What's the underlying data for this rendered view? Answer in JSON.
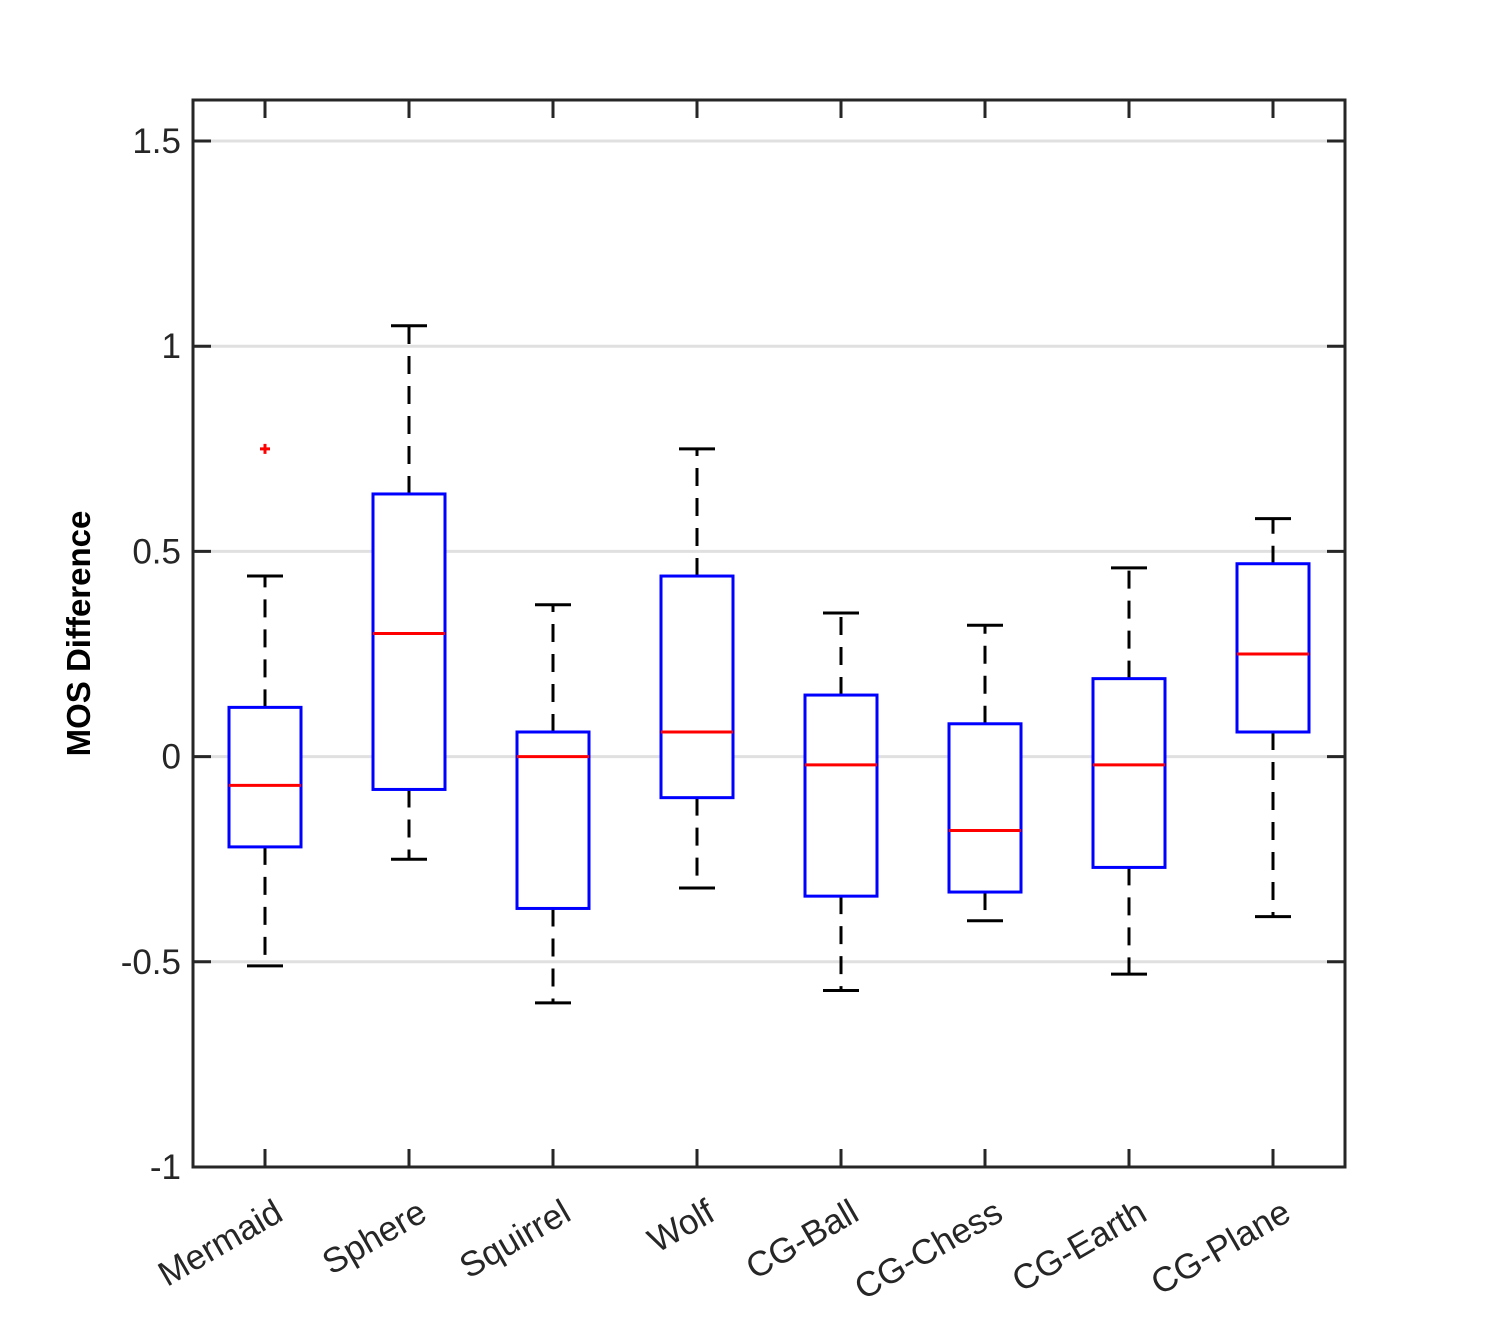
{
  "chart_data": {
    "type": "boxplot",
    "title": "",
    "xlabel": "",
    "ylabel": "MOS Difference",
    "ylim": [
      -1,
      1.6
    ],
    "yticks": [
      -1,
      -0.5,
      0,
      0.5,
      1,
      1.5
    ],
    "ytick_labels": [
      "-1",
      "-0.5",
      "0",
      "0.5",
      "1",
      "1.5"
    ],
    "grid": "horizontal",
    "categories": [
      "Mermaid",
      "Sphere",
      "Squirrel",
      "Wolf",
      "CG-Ball",
      "CG-Chess",
      "CG-Earth",
      "CG-Plane"
    ],
    "boxes": [
      {
        "label": "Mermaid",
        "whisker_low": -0.51,
        "q1": -0.22,
        "median": -0.07,
        "q3": 0.12,
        "whisker_high": 0.44,
        "outliers": [
          0.75
        ]
      },
      {
        "label": "Sphere",
        "whisker_low": -0.25,
        "q1": -0.08,
        "median": 0.3,
        "q3": 0.64,
        "whisker_high": 1.05,
        "outliers": []
      },
      {
        "label": "Squirrel",
        "whisker_low": -0.6,
        "q1": -0.37,
        "median": 0.0,
        "q3": 0.06,
        "whisker_high": 0.37,
        "outliers": []
      },
      {
        "label": "Wolf",
        "whisker_low": -0.32,
        "q1": -0.1,
        "median": 0.06,
        "q3": 0.44,
        "whisker_high": 0.75,
        "outliers": []
      },
      {
        "label": "CG-Ball",
        "whisker_low": -0.57,
        "q1": -0.34,
        "median": -0.02,
        "q3": 0.15,
        "whisker_high": 0.35,
        "outliers": []
      },
      {
        "label": "CG-Chess",
        "whisker_low": -0.4,
        "q1": -0.33,
        "median": -0.18,
        "q3": 0.08,
        "whisker_high": 0.32,
        "outliers": []
      },
      {
        "label": "CG-Earth",
        "whisker_low": -0.53,
        "q1": -0.27,
        "median": -0.02,
        "q3": 0.19,
        "whisker_high": 0.46,
        "outliers": []
      },
      {
        "label": "CG-Plane",
        "whisker_low": -0.39,
        "q1": 0.06,
        "median": 0.25,
        "q3": 0.47,
        "whisker_high": 0.58,
        "outliers": []
      }
    ],
    "colors": {
      "box": "#0000ff",
      "median": "#ff0000",
      "whisker": "#000000",
      "outlier": "#ff0000",
      "grid": "#e0e0e0",
      "axis": "#262626"
    }
  }
}
